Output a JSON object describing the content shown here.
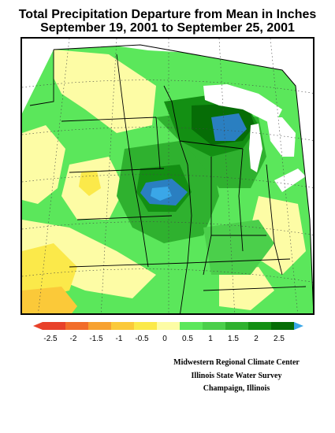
{
  "title": {
    "line1": "Total Precipitation Departure from Mean in Inches",
    "line2": "September 19, 2001 to September 25, 2001"
  },
  "colors": {
    "neg_2_5": "#e8412a",
    "neg_2": "#f26d2a",
    "neg_1_5": "#f7a130",
    "neg_1": "#fbc939",
    "neg_0_5": "#fbe94a",
    "zero": "#fdfca5",
    "pos_0": "#5be75b",
    "pos_0_5": "#4bcf4b",
    "pos_1": "#2fb12f",
    "pos_1_5": "#138f13",
    "pos_2": "#066d06",
    "pos_2_5": "#2a7fc1",
    "pos_3": "#3aa7e8",
    "lake": "#ffffff",
    "border": "#000000"
  },
  "legend": {
    "ticks": [
      "-2.5",
      "-2",
      "-1.5",
      "-1",
      "-0.5",
      "0",
      "0.5",
      "1",
      "1.5",
      "2",
      "2.5"
    ]
  },
  "credits": {
    "line1": "Midwestern Regional Climate Center",
    "line2": "Illinois State Water Survey",
    "line3": "Champaign, Illinois"
  }
}
